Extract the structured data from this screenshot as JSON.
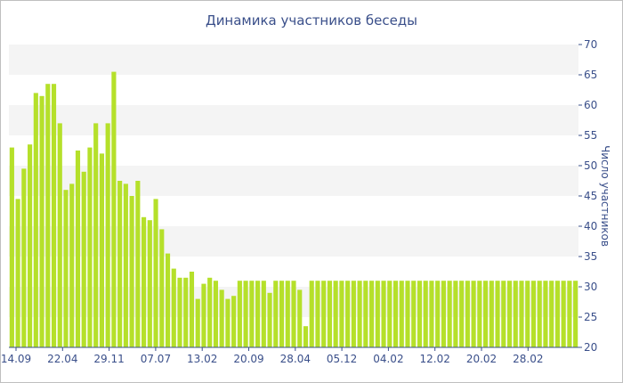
{
  "chart_data": {
    "type": "bar",
    "title": "Динамика участников беседы",
    "xlabel": "",
    "ylabel": "Число участников",
    "ylim": [
      20,
      70
    ],
    "yticks": [
      20,
      25,
      30,
      35,
      40,
      45,
      50,
      55,
      60,
      65,
      70
    ],
    "xtick_labels": [
      "14.09",
      "22.04",
      "29.11",
      "07.07",
      "13.02",
      "20.09",
      "28.04",
      "05.12",
      "04.02",
      "12.02",
      "20.02",
      "28.02"
    ],
    "grid": "alternating horizontal bands",
    "bar_color": "#b5e02a",
    "band_color": "#f4f4f4",
    "text_color": "#3a4f8a",
    "series": [
      {
        "values": [
          53,
          44.5,
          49.5,
          53.5,
          62,
          61.5,
          63.5,
          63.5,
          57,
          46,
          47,
          52.5,
          49,
          53,
          57,
          52,
          57,
          65.5,
          47.5,
          47,
          45,
          47.5,
          41.5,
          41,
          44.5,
          39.5,
          35.5,
          33,
          31.5,
          31.5,
          32.5,
          28,
          30.5,
          31.5,
          31,
          29.5,
          28,
          28.5,
          31,
          31,
          31,
          31,
          31,
          29,
          31,
          31,
          31,
          31,
          29.5,
          23.5,
          31,
          31,
          31,
          31,
          31,
          31,
          31,
          31,
          31,
          31,
          31,
          31,
          31,
          31,
          31,
          31,
          31,
          31,
          31,
          31,
          31,
          31,
          31,
          31,
          31,
          31,
          31,
          31,
          31,
          31,
          31,
          31,
          31,
          31,
          31,
          31,
          31,
          31,
          31,
          31,
          31,
          31,
          31,
          31,
          31
        ]
      }
    ]
  }
}
